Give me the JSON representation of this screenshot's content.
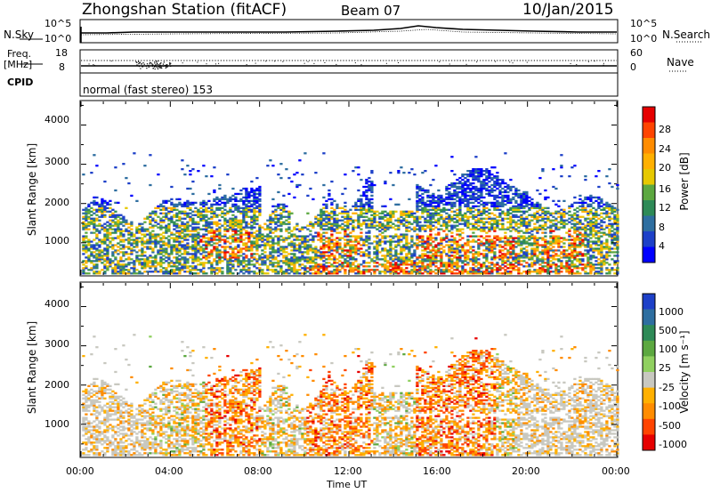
{
  "header": {
    "station": "Zhongshan Station (fitACF)",
    "beam": "Beam 07",
    "date": "10/Jan/2015"
  },
  "top_panels": {
    "nsky_label": "N.Sky",
    "nsearch_label": "N.Search",
    "freq_label_line1": "Freq.",
    "freq_label_line2": "[MHz]",
    "nave_label": "Nave",
    "cpid_label": "CPID",
    "nsky_ticks": [
      "10^5",
      "10^0"
    ],
    "nsearch_ticks": [
      "10^5",
      "10^0"
    ],
    "freq_ticks": [
      "18",
      "8"
    ],
    "nave_ticks": [
      "60",
      "0"
    ],
    "cpid_text": "normal (fast stereo) 153"
  },
  "chart_data": [
    {
      "type": "heatmap",
      "panel": "power",
      "ylabel": "Slant Range [km]",
      "xlabel": "",
      "ylim": [
        180,
        4600
      ],
      "xlim": [
        0,
        24
      ],
      "yticks": [
        "4000",
        "3000",
        "2000",
        "1000"
      ],
      "colorbar": {
        "label": "Power [dB]",
        "ticks": [
          "28",
          "24",
          "20",
          "16",
          "12",
          "8",
          "4"
        ],
        "colors": [
          "#e60000",
          "#ff4400",
          "#ff8c00",
          "#ffb000",
          "#e6c800",
          "#5ca840",
          "#2e8a57",
          "#2e6ea0",
          "#1d40c8",
          "#0000ff"
        ]
      }
    },
    {
      "type": "heatmap",
      "panel": "velocity",
      "ylabel": "Slant Range [km]",
      "xlabel": "Time UT",
      "ylim": [
        180,
        4600
      ],
      "xlim": [
        0,
        24
      ],
      "yticks": [
        "4000",
        "3000",
        "2000",
        "1000"
      ],
      "xticks": [
        "00:00",
        "04:00",
        "08:00",
        "12:00",
        "16:00",
        "20:00",
        "00:00"
      ],
      "colorbar": {
        "label": "Velocity [m s⁻¹]",
        "ticks": [
          "1000",
          "500",
          "100",
          "25",
          "-25",
          "-100",
          "-500",
          "-1000"
        ],
        "colors": [
          "#1d40c8",
          "#2e6ea0",
          "#2e8a57",
          "#5ca840",
          "#90d060",
          "#c8c8c0",
          "#ffb000",
          "#ff8c00",
          "#ff4400",
          "#e60000"
        ]
      }
    }
  ]
}
